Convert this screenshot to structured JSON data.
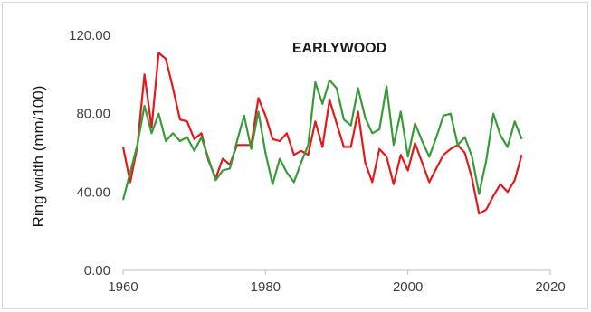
{
  "chart_data": {
    "type": "line",
    "title": "EARLYWOOD",
    "xlabel": "",
    "ylabel": "Ring width (mm/100)",
    "xlim": [
      1960,
      2020
    ],
    "ylim": [
      0,
      120
    ],
    "x_ticks": [
      1960,
      1980,
      2000,
      2020
    ],
    "x_tick_labels": [
      "1960",
      "1980",
      "2000",
      "2020"
    ],
    "y_ticks": [
      0,
      40,
      80,
      120
    ],
    "y_tick_labels": [
      "0.00",
      "40.00",
      "80.00",
      "120.00"
    ],
    "grid": false,
    "legend": "none",
    "series": [
      {
        "color": "#e31a1c",
        "x": [
          1960,
          1961,
          1962,
          1963,
          1964,
          1965,
          1966,
          1967,
          1968,
          1969,
          1970,
          1971,
          1972,
          1973,
          1974,
          1975,
          1976,
          1977,
          1978,
          1979,
          1980,
          1981,
          1982,
          1983,
          1984,
          1985,
          1986,
          1987,
          1988,
          1989,
          1990,
          1991,
          1992,
          1993,
          1994,
          1995,
          1996,
          1997,
          1998,
          1999,
          2000,
          2001,
          2002,
          2003,
          2004,
          2005,
          2006,
          2007,
          2008,
          2009,
          2010,
          2011,
          2012,
          2013,
          2014,
          2015,
          2016
        ],
        "y": [
          63,
          45,
          63,
          100,
          73,
          111,
          108,
          93,
          77,
          76,
          67,
          70,
          56,
          47,
          57,
          54,
          64,
          64,
          64,
          88,
          79,
          67,
          66,
          70,
          59,
          61,
          59,
          76,
          63,
          87,
          75,
          63,
          63,
          81,
          55,
          45,
          62,
          58,
          44,
          59,
          51,
          65,
          55,
          45,
          52,
          59,
          62,
          64,
          60,
          47,
          29,
          31,
          38,
          44,
          40,
          46,
          59
        ]
      },
      {
        "color": "#3a9a3a",
        "x": [
          1960,
          1961,
          1962,
          1963,
          1964,
          1965,
          1966,
          1967,
          1968,
          1969,
          1970,
          1971,
          1972,
          1973,
          1974,
          1975,
          1976,
          1977,
          1978,
          1979,
          1980,
          1981,
          1982,
          1983,
          1984,
          1985,
          1986,
          1987,
          1988,
          1989,
          1990,
          1991,
          1992,
          1993,
          1994,
          1995,
          1996,
          1997,
          1998,
          1999,
          2000,
          2001,
          2002,
          2003,
          2004,
          2005,
          2006,
          2007,
          2008,
          2009,
          2010,
          2011,
          2012,
          2013,
          2014,
          2015,
          2016
        ],
        "y": [
          36,
          50,
          64,
          84,
          70,
          80,
          66,
          70,
          66,
          68,
          61,
          68,
          57,
          46,
          51,
          52,
          66,
          79,
          62,
          81,
          60,
          44,
          57,
          50,
          45,
          55,
          64,
          96,
          85,
          97,
          93,
          77,
          74,
          93,
          78,
          70,
          72,
          94,
          64,
          81,
          58,
          75,
          66,
          58,
          68,
          79,
          80,
          64,
          68,
          58,
          39,
          56,
          80,
          69,
          63,
          76,
          67
        ]
      }
    ]
  }
}
